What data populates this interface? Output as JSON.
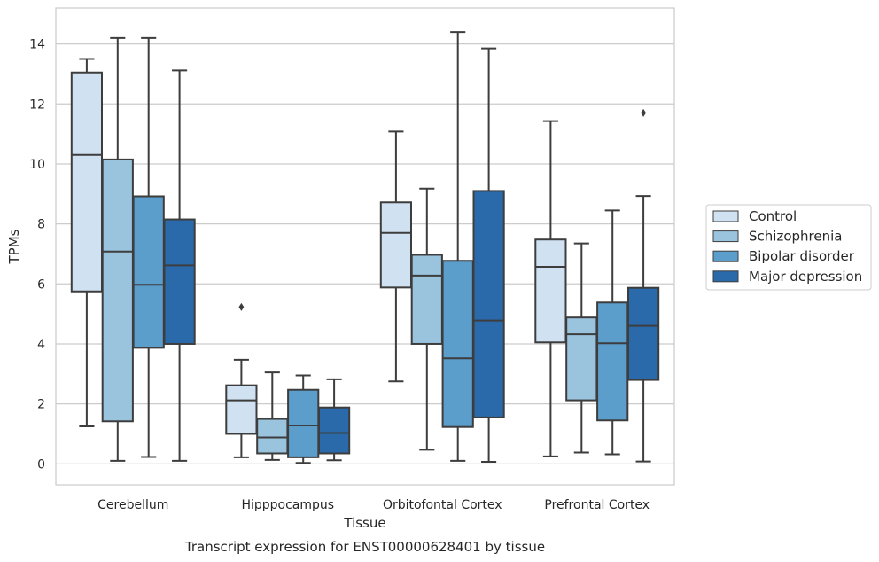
{
  "chart_data": {
    "type": "box",
    "xlabel": "Tissue",
    "ylabel": "TPMs",
    "caption": "Transcript expression for ENST00000628401 by tissue",
    "ylim": [
      -0.7,
      15.2
    ],
    "yticks": [
      0,
      2,
      4,
      6,
      8,
      10,
      12,
      14
    ],
    "grid": "horizontal",
    "legend_position": "right",
    "categories": [
      "Cerebellum",
      "Hipppocampus",
      "Orbitofontal Cortex",
      "Prefrontal Cortex"
    ],
    "series": [
      {
        "name": "Control",
        "color": "#d0e1f2",
        "boxes": [
          {
            "whislo": 1.25,
            "q1": 5.75,
            "med": 10.3,
            "q3": 13.05,
            "whishi": 13.5,
            "fliers": []
          },
          {
            "whislo": 0.22,
            "q1": 1.0,
            "med": 2.12,
            "q3": 2.62,
            "whishi": 3.47,
            "fliers": [
              5.23
            ]
          },
          {
            "whislo": 2.75,
            "q1": 5.88,
            "med": 7.7,
            "q3": 8.72,
            "whishi": 11.08,
            "fliers": []
          },
          {
            "whislo": 0.25,
            "q1": 4.05,
            "med": 6.57,
            "q3": 7.48,
            "whishi": 11.43,
            "fliers": []
          }
        ]
      },
      {
        "name": "Schizophrenia",
        "color": "#9ac3de",
        "boxes": [
          {
            "whislo": 0.1,
            "q1": 1.42,
            "med": 7.08,
            "q3": 10.15,
            "whishi": 14.2,
            "fliers": []
          },
          {
            "whislo": 0.13,
            "q1": 0.35,
            "med": 0.88,
            "q3": 1.5,
            "whishi": 3.05,
            "fliers": []
          },
          {
            "whislo": 0.47,
            "q1": 4.0,
            "med": 6.28,
            "q3": 6.97,
            "whishi": 9.18,
            "fliers": []
          },
          {
            "whislo": 0.38,
            "q1": 2.12,
            "med": 4.32,
            "q3": 4.88,
            "whishi": 7.35,
            "fliers": []
          }
        ]
      },
      {
        "name": "Bipolar disorder",
        "color": "#5b9dcb",
        "boxes": [
          {
            "whislo": 0.23,
            "q1": 3.87,
            "med": 5.97,
            "q3": 8.92,
            "whishi": 14.2,
            "fliers": []
          },
          {
            "whislo": 0.03,
            "q1": 0.22,
            "med": 1.28,
            "q3": 2.47,
            "whishi": 2.95,
            "fliers": []
          },
          {
            "whislo": 0.1,
            "q1": 1.23,
            "med": 3.52,
            "q3": 6.77,
            "whishi": 14.4,
            "fliers": []
          },
          {
            "whislo": 0.32,
            "q1": 1.45,
            "med": 4.02,
            "q3": 5.38,
            "whishi": 8.45,
            "fliers": []
          }
        ]
      },
      {
        "name": "Major depression",
        "color": "#2a6aab",
        "boxes": [
          {
            "whislo": 0.1,
            "q1": 4.0,
            "med": 6.62,
            "q3": 8.15,
            "whishi": 13.12,
            "fliers": []
          },
          {
            "whislo": 0.12,
            "q1": 0.35,
            "med": 1.03,
            "q3": 1.88,
            "whishi": 2.82,
            "fliers": []
          },
          {
            "whislo": 0.07,
            "q1": 1.55,
            "med": 4.78,
            "q3": 9.1,
            "whishi": 13.85,
            "fliers": []
          },
          {
            "whislo": 0.08,
            "q1": 2.8,
            "med": 4.6,
            "q3": 5.87,
            "whishi": 8.93,
            "fliers": [
              11.7
            ]
          }
        ]
      }
    ]
  }
}
